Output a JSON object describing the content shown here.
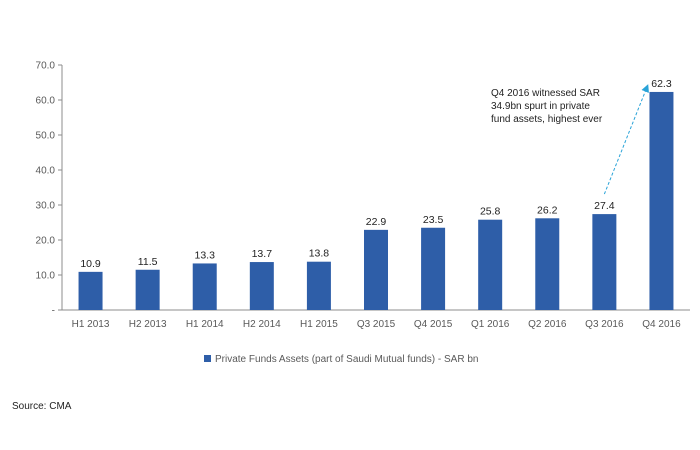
{
  "chart_data": {
    "type": "bar",
    "categories": [
      "H1 2013",
      "H2 2013",
      "H1 2014",
      "H2 2014",
      "H1 2015",
      "Q3 2015",
      "Q4 2015",
      "Q1 2016",
      "Q2 2016",
      "Q3 2016",
      "Q4 2016"
    ],
    "series": [
      {
        "name": "Private Funds Assets (part of Saudi Mutual funds) - SAR bn",
        "values": [
          10.9,
          11.5,
          13.3,
          13.7,
          13.8,
          22.9,
          23.5,
          25.8,
          26.2,
          27.4,
          62.3
        ],
        "color": "#2e5ea8"
      }
    ],
    "data_labels": [
      "10.9",
      "11.5",
      "13.3",
      "13.7",
      "13.8",
      "22.9",
      "23.5",
      "25.8",
      "26.2",
      "27.4",
      "62.3"
    ],
    "y_ticks": [
      "-",
      "10.0",
      "20.0",
      "30.0",
      "40.0",
      "50.0",
      "60.0",
      "70.0"
    ],
    "ylim": [
      0,
      70
    ],
    "grid": false,
    "legend_position": "bottom",
    "annotation": {
      "lines": [
        "Q4 2016 witnessed SAR",
        "34.9bn spurt in private",
        "fund assets, highest ever"
      ],
      "arrow_color": "#29a3d8",
      "from_category": "Q3 2016",
      "to_category": "Q4 2016"
    },
    "title": "",
    "xlabel": "",
    "ylabel": ""
  },
  "source": "Source: CMA"
}
